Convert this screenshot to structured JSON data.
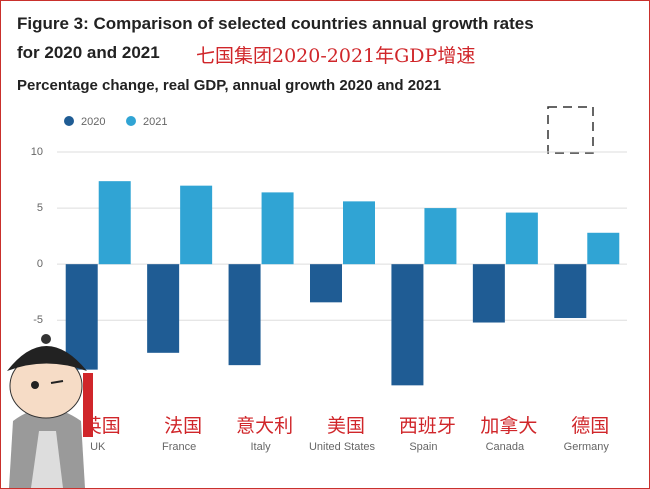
{
  "chart_data": {
    "type": "bar",
    "title": "Figure 3: Comparison of selected countries annual growth rates for 2020 and 2021",
    "subtitle": "Percentage change, real GDP, annual growth 2020 and 2021",
    "categories": [
      "UK",
      "France",
      "Italy",
      "United States",
      "Spain",
      "Canada",
      "Germany"
    ],
    "series": [
      {
        "name": "2020",
        "color": "#1f5c94",
        "values": [
          -9.4,
          -7.9,
          -9.0,
          -3.4,
          -10.8,
          -5.2,
          -4.8
        ]
      },
      {
        "name": "2021",
        "color": "#30a4d4",
        "values": [
          7.4,
          7.0,
          6.4,
          5.6,
          5.0,
          4.6,
          2.8
        ]
      }
    ],
    "ylim": [
      -13.8,
      10
    ],
    "yticks": [
      10,
      5,
      0,
      -5
    ],
    "grid": true,
    "legend": "top-left",
    "annotations": {
      "title": "七国集团2020-2021年GDP增速",
      "categories": [
        "英国",
        "法国",
        "意大利",
        "美国",
        "西班牙",
        "加拿大",
        "德国"
      ]
    }
  }
}
